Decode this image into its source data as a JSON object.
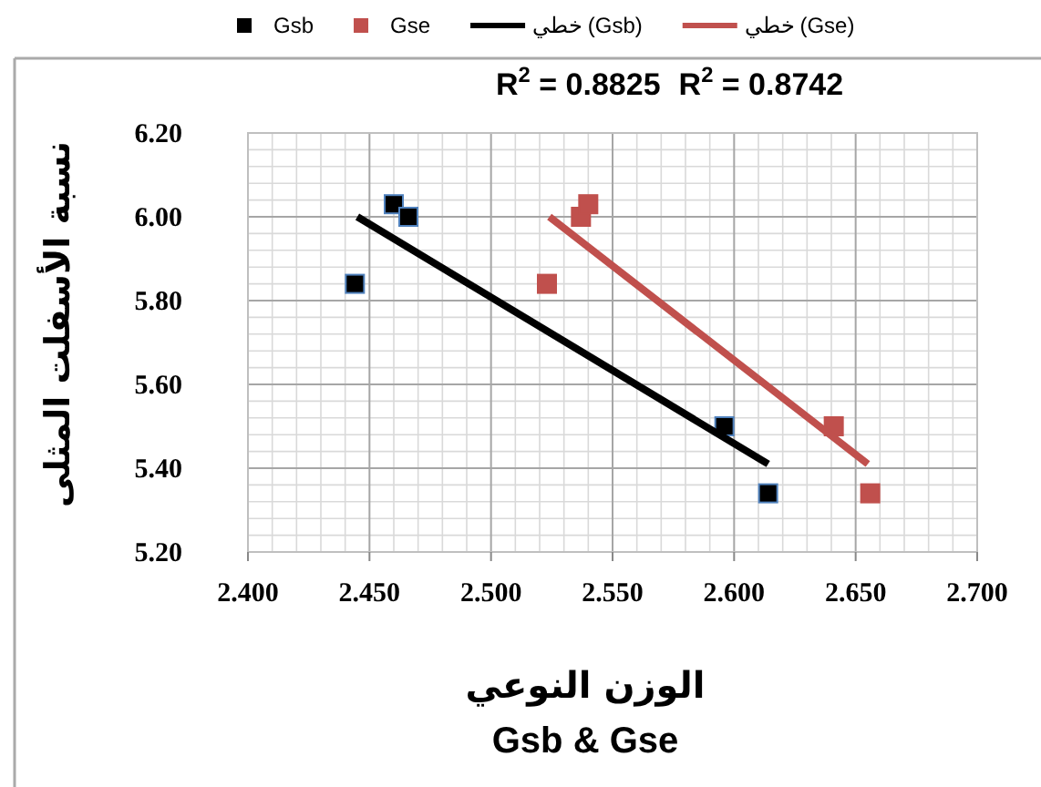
{
  "chart_data": {
    "type": "scatter",
    "title": "Gsb & Gse",
    "xlabel": "الوزن النوعي",
    "ylabel": "نسبة الأسفلت المثلى",
    "xlim": [
      2.4,
      2.7
    ],
    "xticks": [
      {
        "value": 2.4,
        "label": "2.400"
      },
      {
        "value": 2.45,
        "label": "2.450"
      },
      {
        "value": 2.5,
        "label": "2.500"
      },
      {
        "value": 2.55,
        "label": "2.550"
      },
      {
        "value": 2.6,
        "label": "2.600"
      },
      {
        "value": 2.65,
        "label": "2.650"
      },
      {
        "value": 2.7,
        "label": "2.700"
      }
    ],
    "ylim": [
      5.2,
      6.2
    ],
    "yticks": [
      {
        "value": 5.2,
        "label": "5.20"
      },
      {
        "value": 5.4,
        "label": "5.40"
      },
      {
        "value": 5.6,
        "label": "5.60"
      },
      {
        "value": 5.8,
        "label": "5.80"
      },
      {
        "value": 6.0,
        "label": "6.00"
      },
      {
        "value": 6.2,
        "label": "6.20"
      }
    ],
    "grid": true,
    "legend": "top",
    "marker": "square",
    "annotations": [
      "R$^{2}$ = 0.8825",
      "R$^{2}$ = 0.8742"
    ],
    "series": [
      {
        "name": "Gsb",
        "type": "scatter",
        "color": "#000000",
        "x": [
          2.444,
          2.46,
          2.466,
          2.596,
          2.614
        ],
        "values": [
          5.84,
          6.03,
          6.0,
          5.5,
          5.34
        ]
      },
      {
        "name": "Gse",
        "type": "scatter",
        "color": "#c0504d",
        "x": [
          2.523,
          2.537,
          2.54,
          2.641,
          2.656
        ],
        "values": [
          5.84,
          6.0,
          6.03,
          5.5,
          5.34
        ]
      },
      {
        "name": "خطي (Gsb)",
        "type": "line",
        "color": "#000000",
        "marker": "none",
        "x": [
          2.445,
          2.614
        ],
        "values": [
          6.0,
          5.41
        ]
      },
      {
        "name": "خطي (Gse)",
        "type": "line",
        "color": "#c0504d",
        "marker": "none",
        "x": [
          2.524,
          2.655
        ],
        "values": [
          6.0,
          5.41
        ]
      }
    ]
  }
}
